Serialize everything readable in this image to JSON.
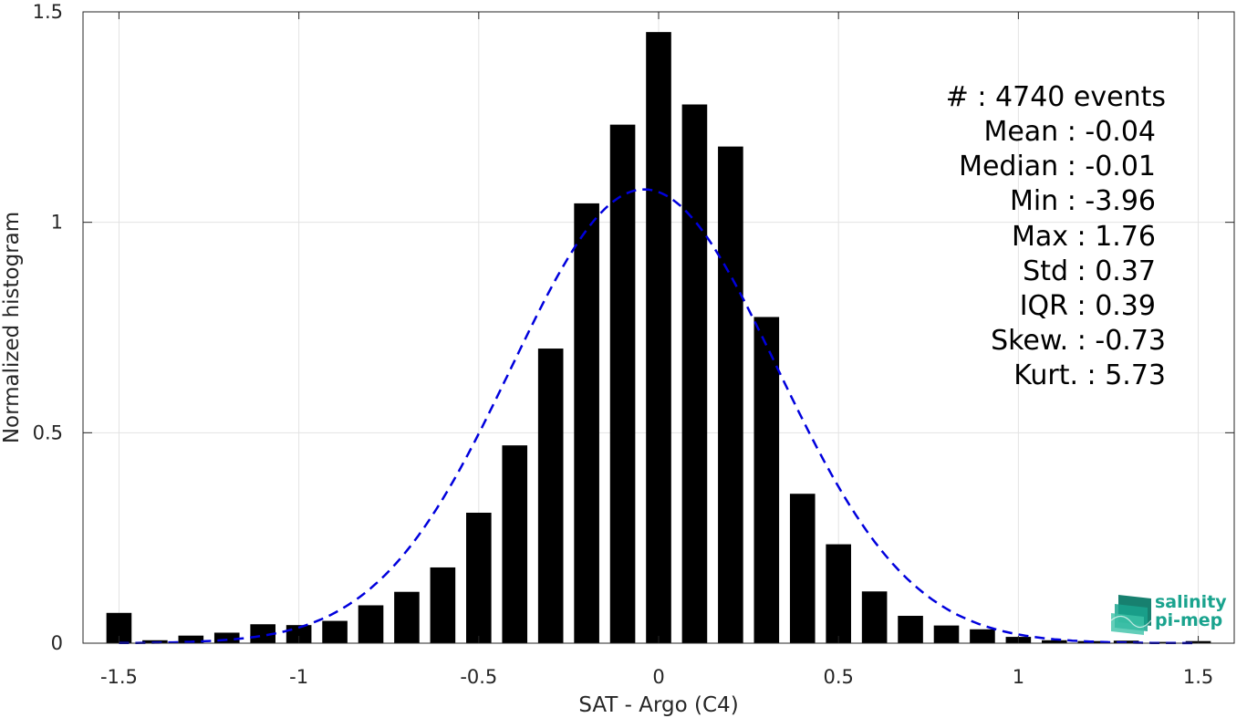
{
  "chart_data": {
    "type": "bar",
    "xlabel": "SAT - Argo (C4)",
    "ylabel": "Normalized histogram",
    "xlim": [
      -1.6,
      1.6
    ],
    "ylim": [
      0,
      1.5
    ],
    "x_ticks": [
      -1.5,
      -1,
      -0.5,
      0,
      0.5,
      1,
      1.5
    ],
    "x_tick_labels": [
      "-1.5",
      "-1",
      "-0.5",
      "0",
      "0.5",
      "1",
      "1.5"
    ],
    "y_ticks": [
      0,
      0.5,
      1,
      1.5
    ],
    "y_tick_labels": [
      "0",
      "0.5",
      "1",
      "1.5"
    ],
    "grid": true,
    "bar_color": "#000000",
    "bins": [
      {
        "x": -1.5,
        "y": 0.072
      },
      {
        "x": -1.4,
        "y": 0.007
      },
      {
        "x": -1.3,
        "y": 0.018
      },
      {
        "x": -1.2,
        "y": 0.025
      },
      {
        "x": -1.1,
        "y": 0.045
      },
      {
        "x": -1.0,
        "y": 0.043
      },
      {
        "x": -0.9,
        "y": 0.053
      },
      {
        "x": -0.8,
        "y": 0.09
      },
      {
        "x": -0.7,
        "y": 0.122
      },
      {
        "x": -0.6,
        "y": 0.18
      },
      {
        "x": -0.5,
        "y": 0.31
      },
      {
        "x": -0.4,
        "y": 0.47
      },
      {
        "x": -0.3,
        "y": 0.7
      },
      {
        "x": -0.2,
        "y": 1.045
      },
      {
        "x": -0.1,
        "y": 1.232
      },
      {
        "x": 0.0,
        "y": 1.452
      },
      {
        "x": 0.1,
        "y": 1.28
      },
      {
        "x": 0.2,
        "y": 1.18
      },
      {
        "x": 0.3,
        "y": 0.775
      },
      {
        "x": 0.4,
        "y": 0.355
      },
      {
        "x": 0.5,
        "y": 0.235
      },
      {
        "x": 0.6,
        "y": 0.123
      },
      {
        "x": 0.7,
        "y": 0.065
      },
      {
        "x": 0.8,
        "y": 0.042
      },
      {
        "x": 0.9,
        "y": 0.033
      },
      {
        "x": 1.0,
        "y": 0.015
      },
      {
        "x": 1.1,
        "y": 0.007
      },
      {
        "x": 1.2,
        "y": 0.005
      },
      {
        "x": 1.3,
        "y": 0.006
      },
      {
        "x": 1.4,
        "y": 0.003
      },
      {
        "x": 1.5,
        "y": 0.005
      }
    ],
    "fit_curve": {
      "type": "gaussian",
      "mean": -0.04,
      "std": 0.37,
      "line_color": "#0000dd",
      "line_style": "dashed"
    }
  },
  "stats": [
    "#  : 4740 events",
    "Mean : -0.04",
    "Median : -0.01",
    "Min : -3.96",
    "Max : 1.76",
    "Std : 0.37",
    "IQR : 0.39",
    "Skew. : -0.73",
    "Kurt. : 5.73"
  ],
  "logo": {
    "line1": "salinity",
    "line2": "pi-mep",
    "color": "#1aa38e"
  }
}
